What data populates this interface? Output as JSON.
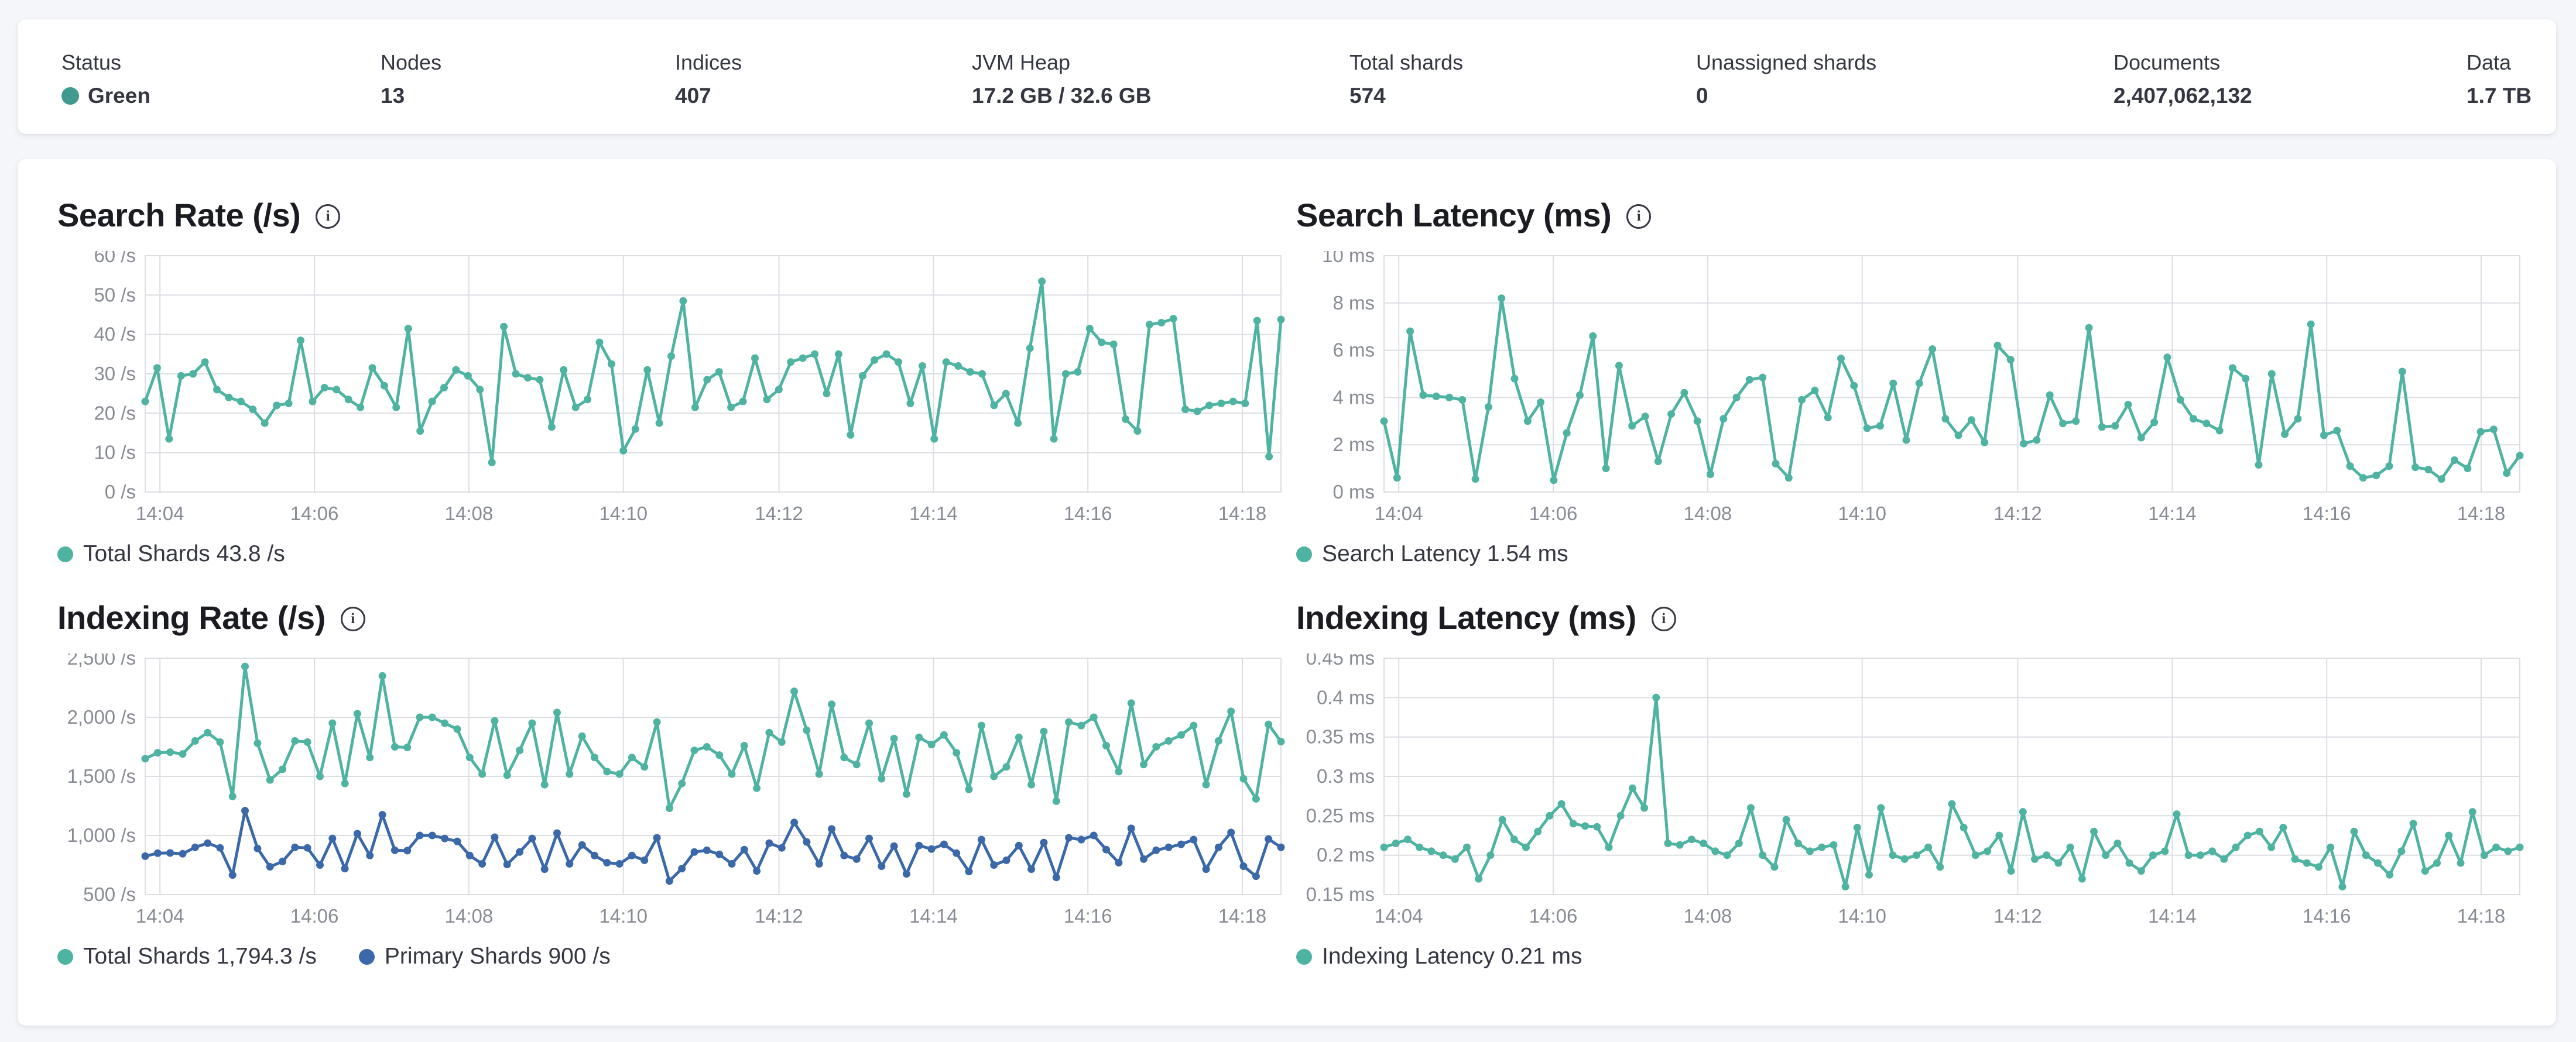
{
  "colors": {
    "teal": "#4fb3a1",
    "blue": "#3a68a9",
    "status_green": "#409a8f",
    "grid": "#dcdee3",
    "axis_text": "#878b93"
  },
  "status_bar": {
    "stats": [
      {
        "label": "Status",
        "value": "Green"
      },
      {
        "label": "Nodes",
        "value": "13"
      },
      {
        "label": "Indices",
        "value": "407"
      },
      {
        "label": "JVM Heap",
        "value": "17.2 GB / 32.6 GB"
      },
      {
        "label": "Total shards",
        "value": "574"
      },
      {
        "label": "Unassigned shards",
        "value": "0"
      },
      {
        "label": "Documents",
        "value": "2,407,062,132"
      },
      {
        "label": "Data",
        "value": "1.7 TB"
      }
    ]
  },
  "info_icon_glyph": "i",
  "time_axis": {
    "labels": [
      "14:04",
      "14:06",
      "14:08",
      "14:10",
      "14:12",
      "14:14",
      "14:16",
      "14:18"
    ],
    "fractions": [
      0.013,
      0.149,
      0.285,
      0.421,
      0.558,
      0.694,
      0.83,
      0.966
    ]
  },
  "chart_data": [
    {
      "type": "line",
      "title": "Search Rate (/s)",
      "ymin": 0,
      "ymax": 60,
      "yticks": [
        {
          "v": 0,
          "label": "0 /s"
        },
        {
          "v": 10,
          "label": "10 /s"
        },
        {
          "v": 20,
          "label": "20 /s"
        },
        {
          "v": 30,
          "label": "30 /s"
        },
        {
          "v": 40,
          "label": "40 /s"
        },
        {
          "v": 50,
          "label": "50 /s"
        },
        {
          "v": 60,
          "label": "60 /s"
        }
      ],
      "legend": [
        {
          "label": "Total Shards 43.8 /s",
          "color": "#4fb3a1"
        }
      ],
      "series": [
        {
          "name": "Total Shards",
          "color": "#4fb3a1",
          "values": [
            23,
            31.5,
            13.5,
            29.5,
            30,
            33,
            26,
            24,
            23,
            21,
            17.5,
            22,
            22.5,
            38.5,
            23,
            26.5,
            26,
            23.5,
            21.5,
            31.5,
            27,
            21.5,
            41.5,
            15.5,
            23,
            26.5,
            31,
            29.5,
            26,
            7.5,
            42,
            30,
            29,
            28.5,
            16.5,
            31,
            21.5,
            23.5,
            38,
            32.5,
            10.5,
            16,
            31,
            17.5,
            34.5,
            48.5,
            21.5,
            28.5,
            30.5,
            21.5,
            23,
            34,
            23.5,
            26,
            33,
            34,
            35,
            25,
            35,
            14.5,
            29.5,
            33.5,
            35,
            33,
            22.5,
            32,
            13.5,
            33,
            32,
            30.5,
            30,
            22,
            25,
            17.5,
            36.5,
            53.5,
            13.5,
            30,
            30.5,
            41.5,
            38,
            37.5,
            18.5,
            15.5,
            42.5,
            43,
            44,
            21,
            20.5,
            22,
            22.5,
            23,
            22.5,
            43.5,
            9,
            43.8
          ]
        }
      ]
    },
    {
      "type": "line",
      "title": "Search Latency (ms)",
      "ymin": 0,
      "ymax": 10,
      "yticks": [
        {
          "v": 0,
          "label": "0 ms"
        },
        {
          "v": 2,
          "label": "2 ms"
        },
        {
          "v": 4,
          "label": "4 ms"
        },
        {
          "v": 6,
          "label": "6 ms"
        },
        {
          "v": 8,
          "label": "8 ms"
        },
        {
          "v": 10,
          "label": "10 ms"
        }
      ],
      "legend": [
        {
          "label": "Search Latency 1.54 ms",
          "color": "#4fb3a1"
        }
      ],
      "series": [
        {
          "name": "Search Latency",
          "color": "#4fb3a1",
          "values": [
            3,
            0.6,
            6.8,
            4.1,
            4.05,
            4,
            3.9,
            0.55,
            3.6,
            8.2,
            4.8,
            3,
            3.8,
            0.5,
            2.5,
            4.1,
            6.6,
            1,
            5.35,
            2.8,
            3.2,
            1.3,
            3.3,
            4.2,
            3,
            0.75,
            3.1,
            4,
            4.75,
            4.85,
            1.2,
            0.6,
            3.9,
            4.3,
            3.15,
            5.65,
            4.5,
            2.7,
            2.8,
            4.6,
            2.2,
            4.6,
            6.05,
            3.1,
            2.4,
            3.05,
            2.1,
            6.2,
            5.6,
            2.05,
            2.2,
            4.1,
            2.9,
            3,
            6.95,
            2.75,
            2.8,
            3.7,
            2.3,
            2.95,
            5.7,
            3.9,
            3.1,
            2.9,
            2.6,
            5.25,
            4.8,
            1.15,
            5,
            2.45,
            3.1,
            7.1,
            2.4,
            2.6,
            1.1,
            0.6,
            0.7,
            1.1,
            5.1,
            1.05,
            0.95,
            0.55,
            1.35,
            1,
            2.55,
            2.65,
            0.8,
            1.54
          ]
        }
      ]
    },
    {
      "type": "line",
      "title": "Indexing Rate (/s)",
      "ymin": 500,
      "ymax": 2500,
      "yticks": [
        {
          "v": 500,
          "label": "500 /s"
        },
        {
          "v": 1000,
          "label": "1,000 /s"
        },
        {
          "v": 1500,
          "label": "1,500 /s"
        },
        {
          "v": 2000,
          "label": "2,000 /s"
        },
        {
          "v": 2500,
          "label": "2,500 /s"
        }
      ],
      "legend": [
        {
          "label": "Total Shards 1,794.3 /s",
          "color": "#4fb3a1"
        },
        {
          "label": "Primary Shards 900 /s",
          "color": "#3a68a9"
        }
      ],
      "series": [
        {
          "name": "Total Shards",
          "color": "#4fb3a1",
          "values": [
            1650,
            1700,
            1705,
            1690,
            1800,
            1870,
            1790,
            1330,
            2430,
            1780,
            1470,
            1560,
            1800,
            1790,
            1500,
            1950,
            1440,
            2030,
            1660,
            2350,
            1750,
            1745,
            2000,
            2000,
            1950,
            1900,
            1660,
            1520,
            1970,
            1510,
            1720,
            1950,
            1430,
            2040,
            1520,
            1840,
            1660,
            1540,
            1520,
            1660,
            1580,
            1960,
            1230,
            1440,
            1720,
            1750,
            1680,
            1520,
            1760,
            1400,
            1870,
            1790,
            2220,
            1890,
            1520,
            2110,
            1660,
            1600,
            1950,
            1480,
            1820,
            1350,
            1830,
            1770,
            1850,
            1700,
            1390,
            1930,
            1500,
            1580,
            1830,
            1430,
            1880,
            1290,
            1960,
            1930,
            2000,
            1760,
            1540,
            2120,
            1600,
            1750,
            1800,
            1850,
            1930,
            1430,
            1800,
            2050,
            1480,
            1310,
            1940,
            1794.3
          ]
        },
        {
          "name": "Primary Shards",
          "color": "#3a68a9",
          "values": [
            825,
            850,
            852,
            845,
            900,
            935,
            895,
            665,
            1210,
            890,
            735,
            780,
            900,
            895,
            750,
            975,
            720,
            1015,
            830,
            1175,
            875,
            872,
            1000,
            1000,
            975,
            950,
            830,
            760,
            985,
            755,
            860,
            975,
            715,
            1020,
            760,
            920,
            830,
            770,
            760,
            830,
            790,
            980,
            615,
            720,
            860,
            875,
            840,
            760,
            880,
            700,
            935,
            895,
            1110,
            945,
            760,
            1055,
            830,
            800,
            975,
            740,
            910,
            675,
            915,
            885,
            925,
            850,
            695,
            965,
            750,
            790,
            915,
            715,
            940,
            645,
            980,
            965,
            1000,
            880,
            770,
            1060,
            800,
            875,
            900,
            925,
            965,
            715,
            900,
            1025,
            740,
            655,
            970,
            900
          ]
        }
      ]
    },
    {
      "type": "line",
      "title": "Indexing Latency (ms)",
      "ymin": 0.15,
      "ymax": 0.45,
      "yticks": [
        {
          "v": 0.15,
          "label": "0.15 ms"
        },
        {
          "v": 0.2,
          "label": "0.2 ms"
        },
        {
          "v": 0.25,
          "label": "0.25 ms"
        },
        {
          "v": 0.3,
          "label": "0.3 ms"
        },
        {
          "v": 0.35,
          "label": "0.35 ms"
        },
        {
          "v": 0.4,
          "label": "0.4 ms"
        },
        {
          "v": 0.45,
          "label": "0.45 ms"
        }
      ],
      "legend": [
        {
          "label": "Indexing Latency 0.21 ms",
          "color": "#4fb3a1"
        }
      ],
      "series": [
        {
          "name": "Indexing Latency",
          "color": "#4fb3a1",
          "values": [
            0.21,
            0.215,
            0.22,
            0.21,
            0.205,
            0.2,
            0.195,
            0.21,
            0.17,
            0.2,
            0.245,
            0.22,
            0.21,
            0.23,
            0.25,
            0.265,
            0.24,
            0.237,
            0.236,
            0.21,
            0.25,
            0.285,
            0.26,
            0.4,
            0.215,
            0.213,
            0.22,
            0.215,
            0.205,
            0.2,
            0.215,
            0.26,
            0.2,
            0.185,
            0.245,
            0.215,
            0.205,
            0.21,
            0.213,
            0.16,
            0.235,
            0.175,
            0.26,
            0.2,
            0.195,
            0.2,
            0.21,
            0.185,
            0.265,
            0.235,
            0.2,
            0.205,
            0.225,
            0.18,
            0.255,
            0.195,
            0.2,
            0.19,
            0.21,
            0.17,
            0.23,
            0.2,
            0.215,
            0.19,
            0.18,
            0.2,
            0.205,
            0.252,
            0.2,
            0.2,
            0.205,
            0.195,
            0.21,
            0.225,
            0.23,
            0.21,
            0.235,
            0.195,
            0.19,
            0.185,
            0.21,
            0.16,
            0.23,
            0.2,
            0.19,
            0.175,
            0.205,
            0.24,
            0.18,
            0.19,
            0.225,
            0.19,
            0.255,
            0.2,
            0.21,
            0.205,
            0.21
          ]
        }
      ]
    }
  ]
}
